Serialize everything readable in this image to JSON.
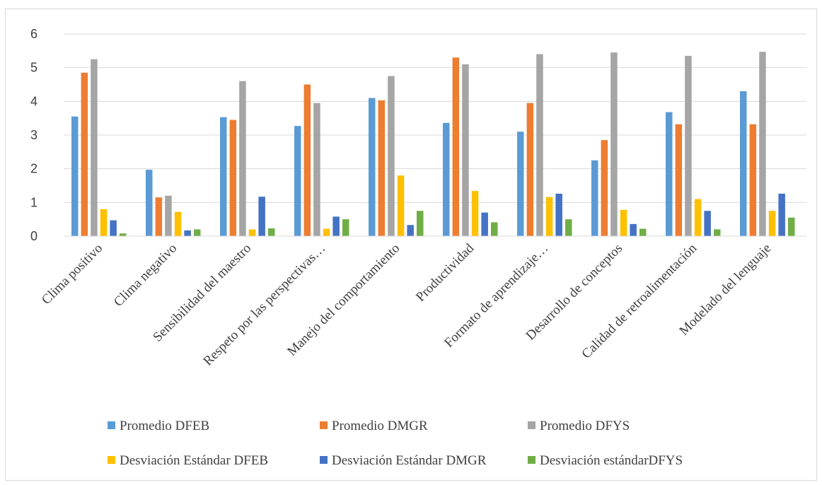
{
  "chart_data": {
    "type": "bar",
    "title": "",
    "xlabel": "",
    "ylabel": "",
    "ylim": [
      0,
      6
    ],
    "yticks": [
      0,
      1,
      2,
      3,
      4,
      5,
      6
    ],
    "grid": true,
    "legend_position": "bottom",
    "categories": [
      "Clima positivo",
      "Clima negativo",
      "Sensibilidad del maestro",
      "Respeto por las perspectivas…",
      "Manejo del comportamiento",
      "Productividad",
      "Formato de aprendizaje…",
      "Desarrollo de conceptos",
      "Calidad de retroalimentación",
      "Modelado del lenguaje"
    ],
    "series": [
      {
        "name": "Promedio DFEB",
        "color": "#5b9bd5",
        "values": [
          3.55,
          1.97,
          3.53,
          3.27,
          4.1,
          3.36,
          3.1,
          2.25,
          3.68,
          4.3
        ]
      },
      {
        "name": "Promedio DMGR",
        "color": "#ed7d31",
        "values": [
          4.85,
          1.15,
          3.45,
          4.5,
          4.03,
          5.3,
          3.95,
          2.85,
          3.32,
          3.32
        ]
      },
      {
        "name": "Promedio DFYS",
        "color": "#a5a5a5",
        "values": [
          5.25,
          1.2,
          4.6,
          3.95,
          4.75,
          5.1,
          5.4,
          5.45,
          5.35,
          5.47
        ]
      },
      {
        "name": "Desviación Estándar DFEB",
        "color": "#ffc000",
        "values": [
          0.8,
          0.72,
          0.2,
          0.22,
          1.8,
          1.34,
          1.16,
          0.78,
          1.1,
          0.75
        ]
      },
      {
        "name": "Desviación Estándar DMGR",
        "color": "#4472c4",
        "values": [
          0.47,
          0.17,
          1.17,
          0.58,
          0.33,
          0.7,
          1.26,
          0.36,
          0.75,
          1.26
        ]
      },
      {
        "name": "Desviación estándarDFYS",
        "color": "#70ad47",
        "values": [
          0.08,
          0.2,
          0.23,
          0.5,
          0.75,
          0.41,
          0.5,
          0.22,
          0.2,
          0.55
        ]
      }
    ],
    "gridline_color": "#d9d9d9"
  }
}
